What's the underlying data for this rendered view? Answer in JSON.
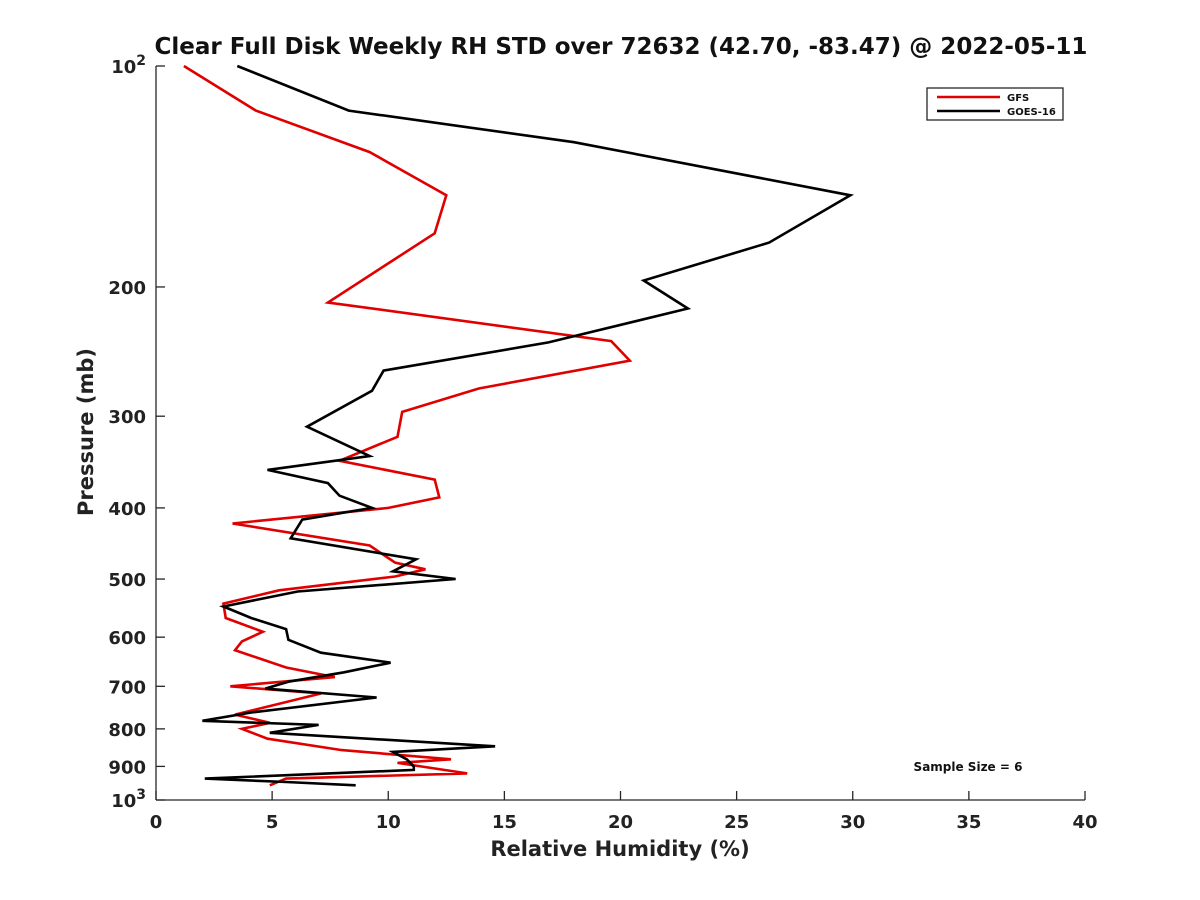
{
  "chart_data": {
    "type": "line",
    "title": "Clear Full Disk Weekly RH STD over 72632 (42.70, -83.47) @ 2022-05-11",
    "xlabel": "Relative Humidity (%)",
    "ylabel": "Pressure (mb)",
    "xlim": [
      0,
      40
    ],
    "ylim": [
      100,
      1000
    ],
    "y_scale": "log",
    "y_reversed": true,
    "x_ticks": [
      "0",
      "5",
      "10",
      "15",
      "20",
      "25",
      "30",
      "35",
      "40"
    ],
    "y_ticks": [
      {
        "value": 100,
        "label": "10",
        "sup": "2"
      },
      {
        "value": 200,
        "label": "200",
        "sup": ""
      },
      {
        "value": 300,
        "label": "300",
        "sup": ""
      },
      {
        "value": 400,
        "label": "400",
        "sup": ""
      },
      {
        "value": 500,
        "label": "500",
        "sup": ""
      },
      {
        "value": 600,
        "label": "600",
        "sup": ""
      },
      {
        "value": 700,
        "label": "700",
        "sup": ""
      },
      {
        "value": 800,
        "label": "800",
        "sup": ""
      },
      {
        "value": 900,
        "label": "900",
        "sup": ""
      },
      {
        "value": 1000,
        "label": "10",
        "sup": "3"
      }
    ],
    "grid": false,
    "legend_position": "top-right",
    "annotation": "Sample Size = 6",
    "series": [
      {
        "name": "GFS",
        "color": "#e00000",
        "points": [
          [
            1.2,
            100
          ],
          [
            4.3,
            115
          ],
          [
            9.2,
            131
          ],
          [
            12.5,
            150
          ],
          [
            12.0,
            169
          ],
          [
            10.2,
            184
          ],
          [
            7.4,
            210
          ],
          [
            19.6,
            237
          ],
          [
            20.4,
            252
          ],
          [
            13.9,
            275
          ],
          [
            10.6,
            296
          ],
          [
            10.4,
            320
          ],
          [
            7.9,
            345
          ],
          [
            12.0,
            366
          ],
          [
            12.2,
            387
          ],
          [
            10.0,
            400
          ],
          [
            3.3,
            420
          ],
          [
            9.2,
            450
          ],
          [
            10.3,
            475
          ],
          [
            11.6,
            485
          ],
          [
            10.3,
            496
          ],
          [
            5.3,
            518
          ],
          [
            2.9,
            540
          ],
          [
            3.0,
            565
          ],
          [
            4.6,
            590
          ],
          [
            3.7,
            608
          ],
          [
            3.4,
            625
          ],
          [
            5.6,
            660
          ],
          [
            7.7,
            680
          ],
          [
            3.2,
            700
          ],
          [
            7.1,
            716
          ],
          [
            3.4,
            765
          ],
          [
            4.9,
            785
          ],
          [
            3.7,
            800
          ],
          [
            4.8,
            825
          ],
          [
            8.0,
            855
          ],
          [
            12.7,
            880
          ],
          [
            10.4,
            890
          ],
          [
            13.4,
            920
          ],
          [
            5.6,
            935
          ],
          [
            4.9,
            955
          ]
        ]
      },
      {
        "name": "GOES-16",
        "color": "#000000",
        "points": [
          [
            3.5,
            100
          ],
          [
            8.3,
            115
          ],
          [
            18.0,
            127
          ],
          [
            29.9,
            150
          ],
          [
            26.4,
            174
          ],
          [
            21.0,
            196
          ],
          [
            22.9,
            214
          ],
          [
            16.9,
            238
          ],
          [
            9.8,
            260
          ],
          [
            9.3,
            277
          ],
          [
            6.5,
            310
          ],
          [
            9.2,
            340
          ],
          [
            4.8,
            355
          ],
          [
            7.4,
            370
          ],
          [
            7.9,
            385
          ],
          [
            9.3,
            400
          ],
          [
            6.3,
            415
          ],
          [
            5.8,
            440
          ],
          [
            11.2,
            470
          ],
          [
            10.2,
            488
          ],
          [
            12.9,
            500
          ],
          [
            6.1,
            520
          ],
          [
            2.9,
            545
          ],
          [
            4.1,
            565
          ],
          [
            5.6,
            585
          ],
          [
            5.7,
            605
          ],
          [
            7.1,
            630
          ],
          [
            10.1,
            650
          ],
          [
            8.1,
            670
          ],
          [
            5.7,
            690
          ],
          [
            4.7,
            705
          ],
          [
            9.5,
            725
          ],
          [
            4.1,
            760
          ],
          [
            2.0,
            780
          ],
          [
            7.0,
            790
          ],
          [
            4.9,
            810
          ],
          [
            14.6,
            845
          ],
          [
            10.2,
            860
          ],
          [
            10.8,
            880
          ],
          [
            11.1,
            900
          ],
          [
            11.1,
            910
          ],
          [
            2.1,
            935
          ],
          [
            5.6,
            945
          ],
          [
            8.6,
            955
          ]
        ]
      }
    ]
  }
}
